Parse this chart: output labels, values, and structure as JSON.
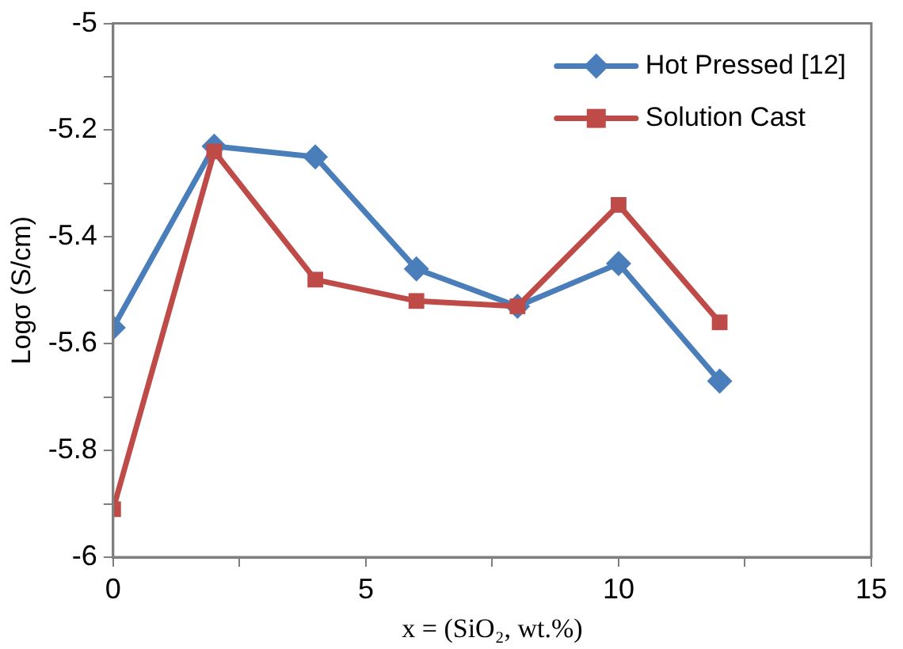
{
  "chart_data": {
    "type": "line",
    "xlabel": "x = (SiO₂, wt.%)",
    "ylabel": "Logσ (S/cm)",
    "x": [
      0,
      2,
      4,
      6,
      8,
      10,
      12
    ],
    "series": [
      {
        "name": "Hot Pressed [12]",
        "color": "#4a7ebb",
        "marker": "diamond",
        "values": [
          -5.57,
          -5.23,
          -5.25,
          -5.46,
          -5.53,
          -5.45,
          -5.67
        ]
      },
      {
        "name": "Solution Cast",
        "color": "#be4b48",
        "marker": "square",
        "values": [
          -5.91,
          -5.24,
          -5.48,
          -5.52,
          -5.53,
          -5.34,
          -5.56
        ]
      }
    ],
    "xlim": [
      0,
      15
    ],
    "xticks": [
      0,
      {
        "value": 2.5,
        "label": null
      },
      5,
      {
        "value": 7.5,
        "label": null
      },
      10,
      {
        "value": 12.5,
        "label": null
      },
      15
    ],
    "ylim": [
      -6,
      -5
    ],
    "yticks": [
      -6,
      {
        "value": -5.9,
        "label": null
      },
      -5.8,
      {
        "value": -5.7,
        "label": null
      },
      -5.6,
      {
        "value": -5.5,
        "label": null
      },
      -5.4,
      {
        "value": -5.3,
        "label": null
      },
      -5.2,
      {
        "value": -5.1,
        "label": null
      },
      -5
    ],
    "grid": false,
    "legend": "top right",
    "line_style": "solid"
  }
}
